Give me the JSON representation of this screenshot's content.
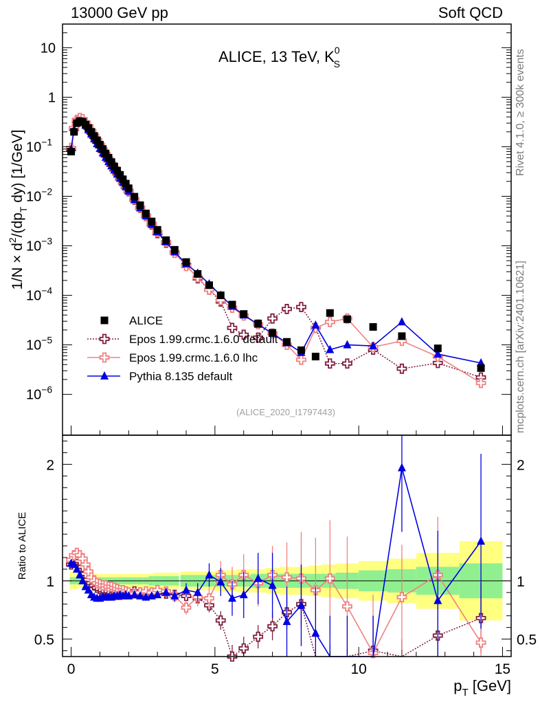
{
  "header": {
    "left": "13000 GeV pp",
    "right": "Soft QCD"
  },
  "side_labels": {
    "rivet": "Rivet 4.1.0, ≥ 300k events",
    "mcplots": "mcplots.cern.ch [arXiv:2401.10621]"
  },
  "chart_data": {
    "type": "scatter",
    "title": "ALICE, 13 TeV, K",
    "title_sup": "0",
    "title_sub": "S",
    "analysis_tag": "(ALICE_2020_I1797443)",
    "xlabel": "p",
    "xlabel_sub": "T",
    "xlabel_unit": " [GeV]",
    "ylabel_parts": [
      "1/N × d",
      "2",
      "/(dp",
      "T",
      " dy) [1/GeV]"
    ],
    "ratio_ylabel": "Ratio to ALICE",
    "xlim": [
      -0.3,
      15.3
    ],
    "ylim_log": [
      1.5e-07,
      30
    ],
    "ratio_ylim": [
      0.35,
      2.25
    ],
    "x_ticks": [
      {
        "v": 0,
        "label": "0"
      },
      {
        "v": 5,
        "label": "5"
      },
      {
        "v": 10,
        "label": "10"
      },
      {
        "v": 15,
        "label": "15"
      }
    ],
    "y_ticks": [
      {
        "exp": 1,
        "label": "10"
      },
      {
        "exp": 0,
        "label": "1"
      },
      {
        "exp": -1,
        "label": "10",
        "sup": "−1"
      },
      {
        "exp": -2,
        "label": "10",
        "sup": "−2"
      },
      {
        "exp": -3,
        "label": "10",
        "sup": "−3"
      },
      {
        "exp": -4,
        "label": "10",
        "sup": "−4"
      },
      {
        "exp": -5,
        "label": "10",
        "sup": "−5"
      },
      {
        "exp": -6,
        "label": "10",
        "sup": "−6"
      }
    ],
    "ratio_ticks": [
      {
        "v": 0.5,
        "label": "0.5"
      },
      {
        "v": 1,
        "label": "1"
      },
      {
        "v": 2,
        "label": "2"
      }
    ],
    "x": [
      0.0,
      0.1,
      0.2,
      0.3,
      0.4,
      0.5,
      0.6,
      0.7,
      0.8,
      0.9,
      1.0,
      1.1,
      1.2,
      1.3,
      1.4,
      1.5,
      1.6,
      1.7,
      1.8,
      1.9,
      2.0,
      2.2,
      2.4,
      2.6,
      2.8,
      3.0,
      3.3,
      3.6,
      4.0,
      4.4,
      4.8,
      5.2,
      5.6,
      6.0,
      6.5,
      7.0,
      7.5,
      8.0,
      8.5,
      9.0,
      9.6,
      10.5,
      11.5,
      12.75,
      14.25
    ],
    "bin_half_widths": [
      0.05,
      0.05,
      0.05,
      0.05,
      0.05,
      0.05,
      0.05,
      0.05,
      0.05,
      0.05,
      0.05,
      0.05,
      0.05,
      0.05,
      0.05,
      0.05,
      0.05,
      0.05,
      0.05,
      0.05,
      0.1,
      0.1,
      0.1,
      0.1,
      0.1,
      0.15,
      0.15,
      0.15,
      0.2,
      0.2,
      0.2,
      0.2,
      0.2,
      0.25,
      0.25,
      0.25,
      0.25,
      0.25,
      0.25,
      0.3,
      0.4,
      0.5,
      0.5,
      0.75,
      0.75
    ],
    "series": [
      {
        "name": "ALICE",
        "color": "#000000",
        "marker": "square",
        "values": [
          0.08,
          0.2,
          0.3,
          0.33,
          0.32,
          0.28,
          0.24,
          0.2,
          0.165,
          0.135,
          0.11,
          0.09,
          0.073,
          0.06,
          0.049,
          0.04,
          0.033,
          0.027,
          0.022,
          0.018,
          0.0145,
          0.0098,
          0.0066,
          0.0045,
          0.0031,
          0.0021,
          0.0013,
          0.00083,
          0.00047,
          0.00027,
          0.00016,
          0.0001,
          6.5e-05,
          4.2e-05,
          2.7e-05,
          1.75e-05,
          1.15e-05,
          7.8e-06,
          5.8e-06,
          4.4e-05,
          3.3e-05,
          2.3e-05,
          1.5e-05,
          8.5e-06,
          3.4e-06
        ]
      },
      {
        "name": "Epos 1.99.crmc.1.6.0 default",
        "color": "#7f1f3f",
        "marker": "open-cross",
        "values": [
          0.09,
          0.23,
          0.33,
          0.36,
          0.34,
          0.29,
          0.24,
          0.195,
          0.158,
          0.127,
          0.102,
          0.082,
          0.066,
          0.053,
          0.043,
          0.035,
          0.029,
          0.023,
          0.019,
          0.0155,
          0.0126,
          0.0085,
          0.0058,
          0.004,
          0.0027,
          0.0018,
          0.00115,
          0.00073,
          0.00041,
          0.00022,
          0.00013,
          7.5e-05,
          2.2e-05,
          1.6e-05,
          1.4e-05,
          3.4e-05,
          5.3e-05,
          5.8e-05,
          2.2e-05,
          4.2e-06,
          4.2e-06,
          8e-06,
          3.3e-06,
          4.3e-06,
          2.2e-06
        ],
        "ratio": [
          1.14,
          1.17,
          1.18,
          1.17,
          1.12,
          1.06,
          1.01,
          0.98,
          0.96,
          0.94,
          0.93,
          0.92,
          0.91,
          0.91,
          0.9,
          0.89,
          0.88,
          0.88,
          0.9,
          0.9,
          0.89,
          0.91,
          0.9,
          0.89,
          0.9,
          0.9,
          0.89,
          0.88,
          0.87,
          0.85,
          0.79,
          0.66,
          0.35,
          0.42,
          0.52,
          0.61,
          0.73,
          0.8,
          0.2,
          0.15,
          0.12,
          0.4,
          0.2,
          0.53,
          0.68
        ],
        "ratio_err": [
          0.02,
          0.02,
          0.02,
          0.02,
          0.02,
          0.02,
          0.02,
          0.02,
          0.02,
          0.02,
          0.02,
          0.02,
          0.02,
          0.02,
          0.02,
          0.02,
          0.02,
          0.02,
          0.02,
          0.02,
          0.02,
          0.02,
          0.02,
          0.02,
          0.02,
          0.03,
          0.03,
          0.03,
          0.04,
          0.05,
          0.06,
          0.08,
          0.1,
          0.1,
          0.1,
          0.12,
          0.15,
          0.2,
          0.2,
          0.3,
          0.3,
          0.3,
          0.3,
          0.25,
          0.3
        ]
      },
      {
        "name": "Epos 1.99.crmc.1.6.0 lhc",
        "color": "#f08080",
        "marker": "open-cross",
        "values": [
          0.095,
          0.24,
          0.35,
          0.38,
          0.36,
          0.31,
          0.26,
          0.21,
          0.17,
          0.137,
          0.11,
          0.088,
          0.071,
          0.057,
          0.046,
          0.037,
          0.03,
          0.024,
          0.0195,
          0.016,
          0.013,
          0.0087,
          0.0059,
          0.0041,
          0.0028,
          0.0019,
          0.0012,
          0.00072,
          0.00039,
          0.00023,
          0.00013,
          8e-05,
          5.6e-05,
          3.9e-05,
          2.6e-05,
          1.7e-05,
          1e-05,
          5e-06,
          2.2e-05,
          2.9e-05,
          3.4e-05,
          9e-06,
          1.2e-05,
          5.8e-06,
          1.7e-06
        ],
        "ratio": [
          1.18,
          1.22,
          1.24,
          1.22,
          1.19,
          1.14,
          1.08,
          1.03,
          1.0,
          0.98,
          0.97,
          0.96,
          0.96,
          0.95,
          0.95,
          0.94,
          0.93,
          0.92,
          0.92,
          0.91,
          0.9,
          0.89,
          0.9,
          0.91,
          0.9,
          0.92,
          0.91,
          0.87,
          0.77,
          0.86,
          0.85,
          1.05,
          0.97,
          1.05,
          0.98,
          1.05,
          1.03,
          1.02,
          0.92,
          1.02,
          0.78,
          0.38,
          0.86,
          1.05,
          0.47
        ],
        "ratio_err": [
          0.02,
          0.02,
          0.02,
          0.02,
          0.02,
          0.02,
          0.02,
          0.02,
          0.02,
          0.02,
          0.02,
          0.02,
          0.02,
          0.02,
          0.02,
          0.02,
          0.02,
          0.02,
          0.02,
          0.02,
          0.02,
          0.02,
          0.02,
          0.03,
          0.03,
          0.03,
          0.04,
          0.05,
          0.06,
          0.08,
          0.1,
          0.12,
          0.15,
          0.18,
          0.2,
          0.25,
          0.3,
          0.4,
          0.45,
          0.5,
          0.6,
          0.5,
          0.45,
          0.5,
          0.45
        ]
      },
      {
        "name": "Pythia 8.135 default",
        "color": "#0000e0",
        "marker": "triangle",
        "values": [
          0.09,
          0.22,
          0.31,
          0.33,
          0.31,
          0.27,
          0.22,
          0.18,
          0.145,
          0.115,
          0.092,
          0.075,
          0.061,
          0.05,
          0.041,
          0.034,
          0.028,
          0.023,
          0.019,
          0.0155,
          0.0126,
          0.0085,
          0.0058,
          0.004,
          0.0027,
          0.0019,
          0.0012,
          0.00075,
          0.00043,
          0.00028,
          0.00017,
          0.0001,
          6e-05,
          4e-05,
          2.6e-05,
          1.7e-05,
          1.1e-05,
          7e-06,
          2.5e-05,
          8e-06,
          1e-05,
          9.5e-06,
          2.9e-05,
          6.5e-06,
          4.3e-06
        ],
        "ratio": [
          1.15,
          1.14,
          1.1,
          1.05,
          1.0,
          0.95,
          0.92,
          0.88,
          0.86,
          0.85,
          0.85,
          0.86,
          0.86,
          0.86,
          0.86,
          0.87,
          0.87,
          0.88,
          0.87,
          0.88,
          0.87,
          0.88,
          0.87,
          0.86,
          0.87,
          0.88,
          0.9,
          0.87,
          0.92,
          0.9,
          1.05,
          0.99,
          0.85,
          0.88,
          1.02,
          0.96,
          0.65,
          0.79,
          0.55,
          0.2,
          0.2,
          0.2,
          1.97,
          0.83,
          1.34
        ],
        "ratio_err": [
          0.02,
          0.02,
          0.02,
          0.02,
          0.02,
          0.02,
          0.02,
          0.02,
          0.02,
          0.02,
          0.02,
          0.02,
          0.02,
          0.02,
          0.02,
          0.02,
          0.02,
          0.02,
          0.02,
          0.02,
          0.02,
          0.02,
          0.02,
          0.03,
          0.03,
          0.03,
          0.04,
          0.05,
          0.06,
          0.08,
          0.1,
          0.12,
          0.15,
          0.2,
          0.22,
          0.28,
          0.3,
          0.35,
          0.4,
          0.5,
          0.5,
          0.5,
          0.55,
          0.6,
          0.75
        ]
      }
    ],
    "ratio_band_inner": [
      0.03,
      0.03,
      0.03,
      0.03,
      0.03,
      0.03,
      0.03,
      0.03,
      0.03,
      0.03,
      0.03,
      0.03,
      0.03,
      0.03,
      0.03,
      0.03,
      0.03,
      0.03,
      0.03,
      0.03,
      0.03,
      0.03,
      0.03,
      0.03,
      0.04,
      0.04,
      0.04,
      0.04,
      0.05,
      0.05,
      0.05,
      0.05,
      0.05,
      0.05,
      0.06,
      0.06,
      0.06,
      0.06,
      0.06,
      0.06,
      0.07,
      0.09,
      0.1,
      0.12,
      0.15
    ],
    "ratio_band_outer": [
      0.08,
      0.07,
      0.07,
      0.06,
      0.06,
      0.06,
      0.06,
      0.06,
      0.06,
      0.06,
      0.06,
      0.06,
      0.06,
      0.06,
      0.06,
      0.06,
      0.06,
      0.06,
      0.06,
      0.06,
      0.06,
      0.06,
      0.06,
      0.06,
      0.06,
      0.07,
      0.07,
      0.07,
      0.08,
      0.08,
      0.08,
      0.09,
      0.09,
      0.1,
      0.1,
      0.11,
      0.12,
      0.12,
      0.13,
      0.14,
      0.15,
      0.17,
      0.19,
      0.24,
      0.34
    ]
  }
}
